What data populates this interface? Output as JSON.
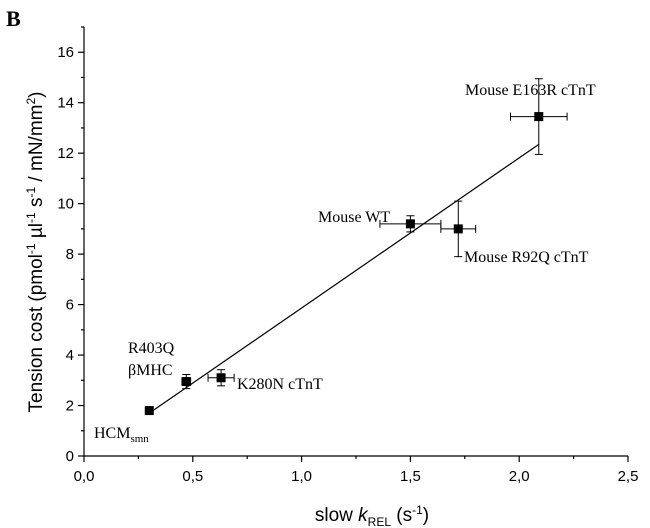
{
  "panel_label": "B",
  "chart_data": {
    "type": "scatter",
    "xlabel": {
      "main": "slow ",
      "k": "k",
      "sub": "REL",
      "unit": " (s",
      "exp": "-1",
      "close": ")"
    },
    "ylabel": "Tension cost (pmol-1 µl-1 s-1 / mN/mm2)",
    "xlim": [
      0,
      2.5
    ],
    "ylim": [
      0,
      17
    ],
    "x_ticks": [
      "0,0",
      "0,5",
      "1,0",
      "1,5",
      "2,0",
      "2,5"
    ],
    "x_tick_values": [
      0,
      0.5,
      1.0,
      1.5,
      2.0,
      2.5
    ],
    "y_ticks": [
      "0",
      "2",
      "4",
      "6",
      "8",
      "10",
      "12",
      "14",
      "16"
    ],
    "y_tick_values": [
      0,
      2,
      4,
      6,
      8,
      10,
      12,
      14,
      16
    ],
    "grid": false,
    "marker_color": "#000000",
    "points": [
      {
        "label": "HCM",
        "label_sub": "smn",
        "x": 0.3,
        "y": 1.8,
        "xerr": 0.0,
        "yerr": 0.0
      },
      {
        "label": "R403Q",
        "label2": "βMHC",
        "x": 0.47,
        "y": 2.95,
        "xerr": 0.02,
        "yerr": 0.28
      },
      {
        "label": "K280N cTnT",
        "x": 0.63,
        "y": 3.1,
        "xerr": 0.06,
        "yerr": 0.32
      },
      {
        "label": "Mouse WT",
        "x": 1.5,
        "y": 9.2,
        "xerr": 0.14,
        "yerr": 0.32
      },
      {
        "label": "Mouse R92Q cTnT",
        "x": 1.72,
        "y": 9.0,
        "xerr": 0.08,
        "yerr": 1.1
      },
      {
        "label": "Mouse E163R cTnT",
        "x": 2.09,
        "y": 13.45,
        "xerr": 0.13,
        "yerr": 1.5
      }
    ],
    "fit_line": {
      "x": [
        0.3,
        2.09
      ],
      "y": [
        1.7,
        12.35
      ]
    }
  }
}
